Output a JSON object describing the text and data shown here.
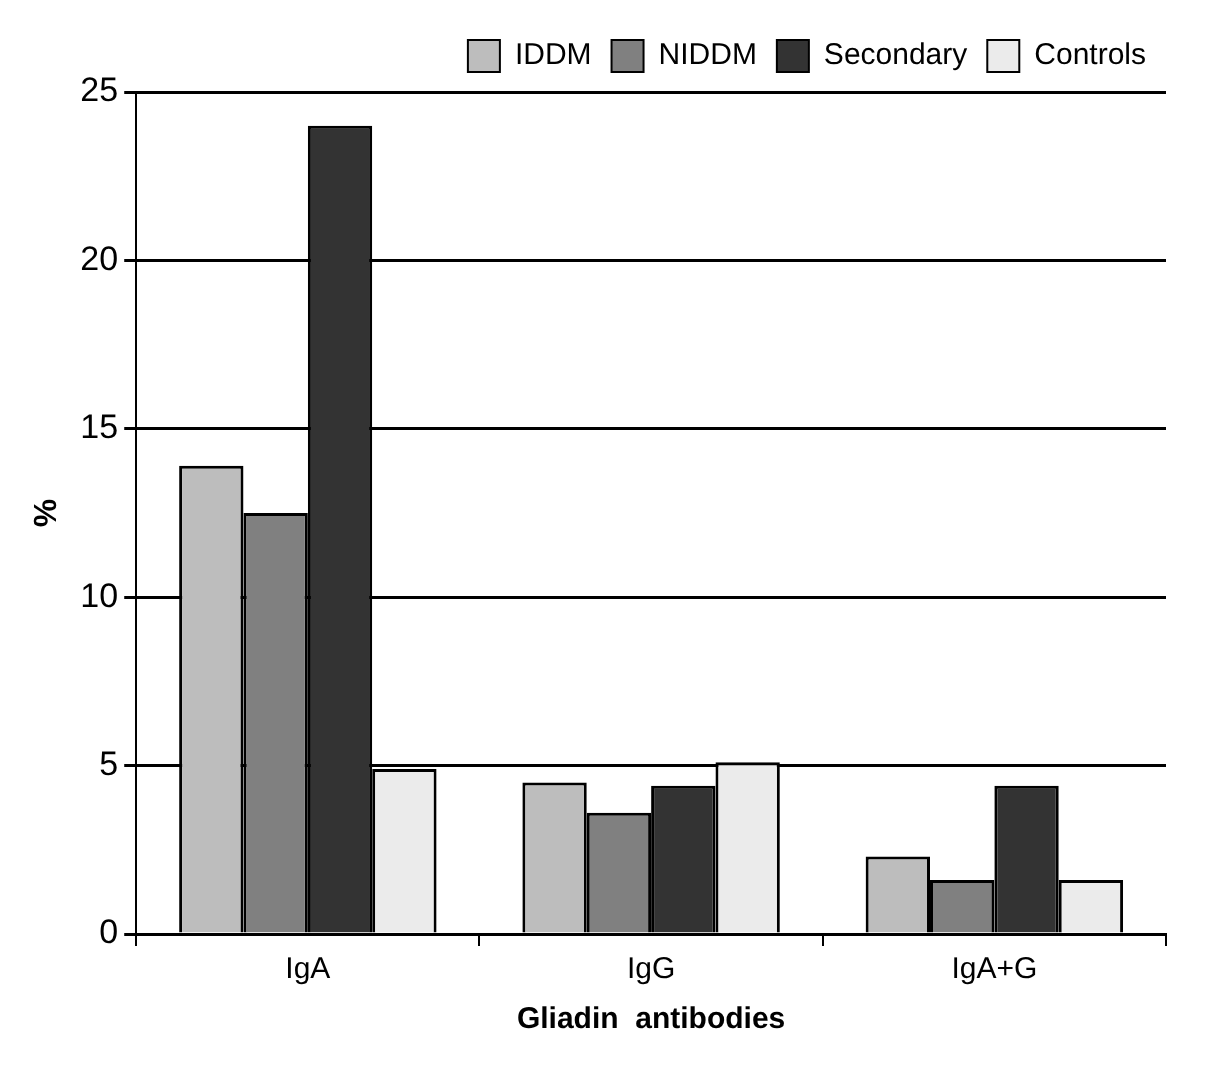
{
  "chart_data": {
    "type": "bar",
    "xlabel": "Gliadin  antibodies",
    "ylabel": "%",
    "categories": [
      "IgA",
      "IgG",
      "IgA+G"
    ],
    "series": [
      {
        "name": "IDDM",
        "color": "#bdbdbd",
        "values": [
          13.9,
          4.5,
          2.3
        ]
      },
      {
        "name": "NIDDM",
        "color": "#808080",
        "values": [
          12.5,
          3.6,
          1.6
        ]
      },
      {
        "name": "Secondary",
        "color": "#333333",
        "values": [
          24,
          4.4,
          4.4
        ]
      },
      {
        "name": "Controls",
        "color": "#ebebeb",
        "values": [
          4.9,
          5.1,
          1.6
        ]
      }
    ],
    "ylim": [
      0,
      25
    ],
    "yticks": [
      0,
      5,
      10,
      15,
      20,
      25
    ],
    "grid": "y",
    "legend": "top right"
  }
}
